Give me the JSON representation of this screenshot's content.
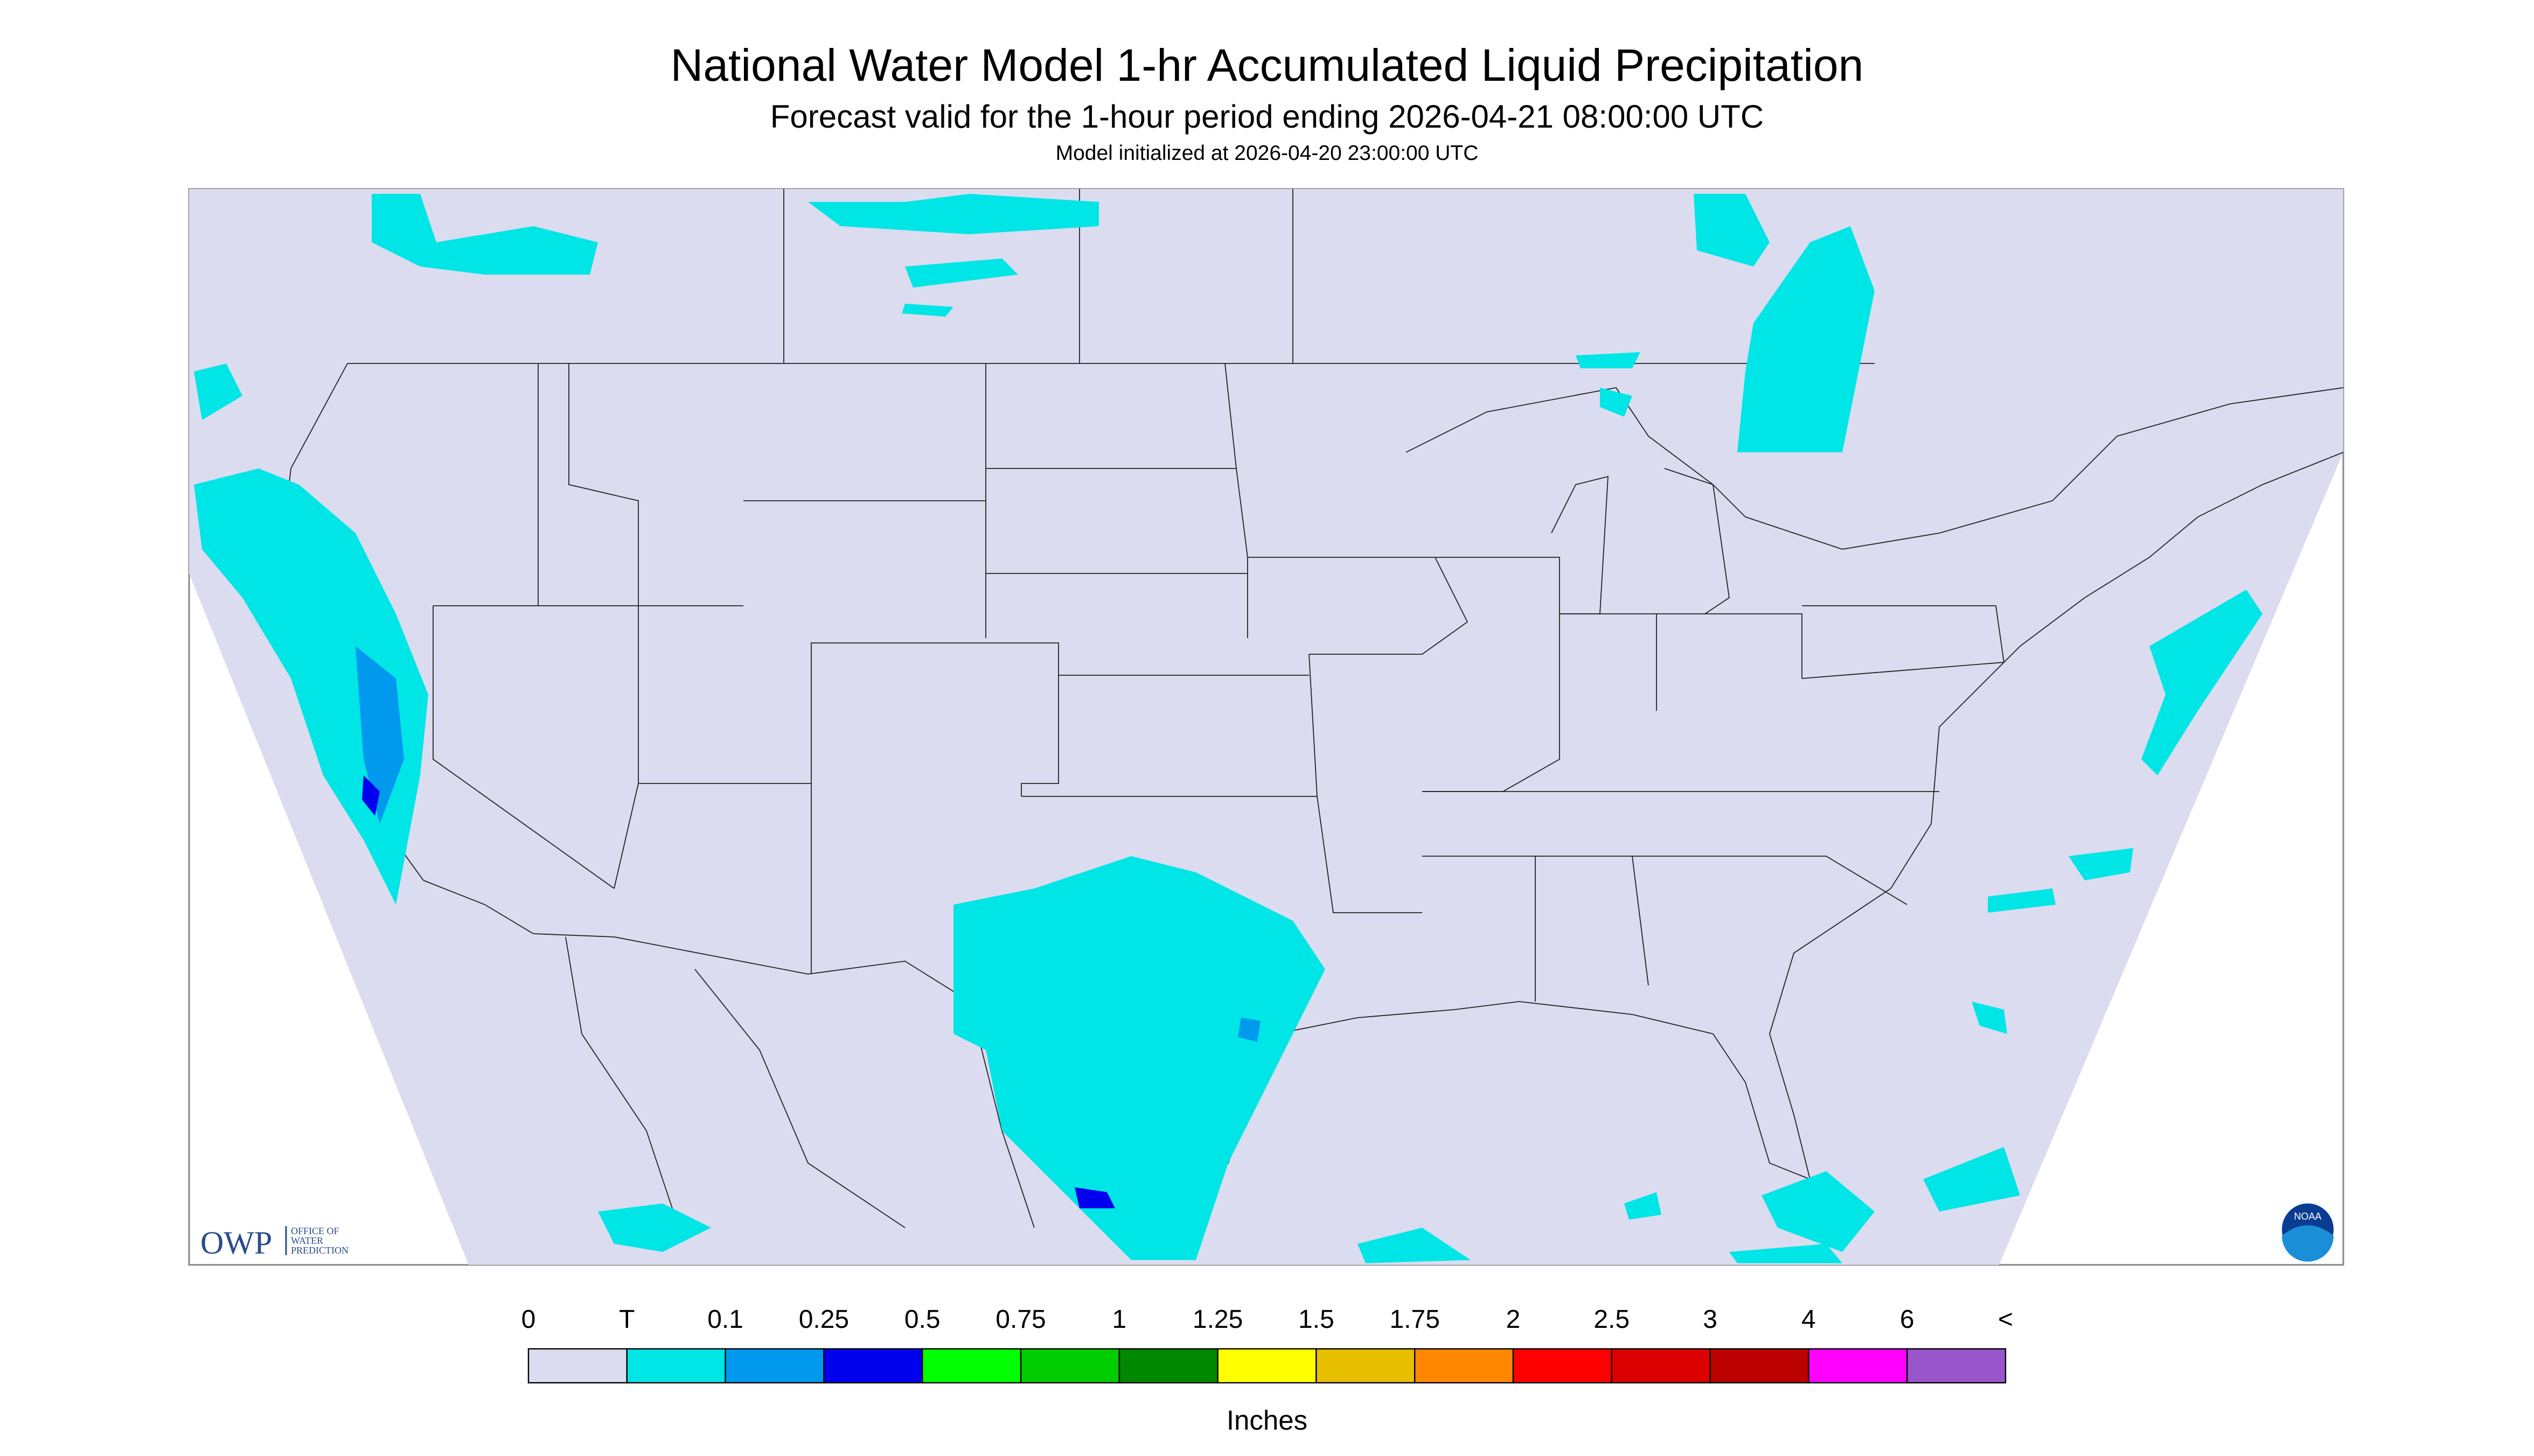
{
  "header": {
    "title": "National Water Model 1-hr Accumulated Liquid Precipitation",
    "subtitle": "Forecast valid for the 1-hour period ending 2026-04-21 08:00:00 UTC",
    "note": "Model initialized at 2026-04-20 23:00:00 UTC"
  },
  "legend": {
    "labels": [
      "0",
      "T",
      "0.1",
      "0.25",
      "0.5",
      "0.75",
      "1",
      "1.25",
      "1.5",
      "1.75",
      "2",
      "2.5",
      "3",
      "4",
      "6",
      "<"
    ],
    "colors": [
      "#dcdcf0",
      "#00e5e5",
      "#0099ee",
      "#0000ee",
      "#00ff00",
      "#00cc00",
      "#008800",
      "#ffff00",
      "#e6c000",
      "#ff8800",
      "#ff0000",
      "#dd0000",
      "#bb0000",
      "#ff00ff",
      "#9955cc"
    ],
    "unit": "Inches"
  },
  "logo": {
    "owp": "OWP",
    "office": [
      "OFFICE OF",
      "WATER",
      "PREDICTION"
    ],
    "noaa": "NOAA"
  }
}
